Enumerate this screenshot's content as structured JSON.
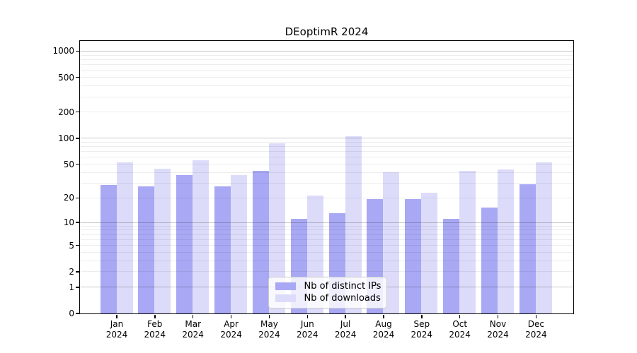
{
  "chart_data": {
    "type": "bar",
    "title": "DEoptimR 2024",
    "year_label": "2024",
    "categories": [
      "Jan",
      "Feb",
      "Mar",
      "Apr",
      "May",
      "Jun",
      "Jul",
      "Aug",
      "Sep",
      "Oct",
      "Nov",
      "Dec"
    ],
    "series": [
      {
        "name": "Nb of distinct IPs",
        "color": "#a8a8f4",
        "values": [
          28,
          27,
          37,
          27,
          41,
          11,
          13,
          19,
          19,
          11,
          15,
          29
        ]
      },
      {
        "name": "Nb of downloads",
        "color": "#dcdcfa",
        "values": [
          52,
          44,
          55,
          37,
          87,
          21,
          104,
          40,
          23,
          41,
          43,
          52
        ]
      }
    ],
    "yscale": "log1p",
    "ylim": [
      0,
      1000
    ],
    "yticks": [
      0,
      1,
      2,
      5,
      10,
      20,
      50,
      100,
      200,
      500,
      1000
    ],
    "major_gridlines": [
      1,
      10,
      100,
      1000
    ],
    "minor_gridlines": [
      2,
      3,
      4,
      5,
      6,
      7,
      8,
      9,
      20,
      30,
      40,
      50,
      60,
      70,
      80,
      90,
      200,
      300,
      400,
      500,
      600,
      700,
      800,
      900
    ],
    "grid": true,
    "legend_position": "bottom-center",
    "xlabel": "",
    "ylabel": ""
  }
}
